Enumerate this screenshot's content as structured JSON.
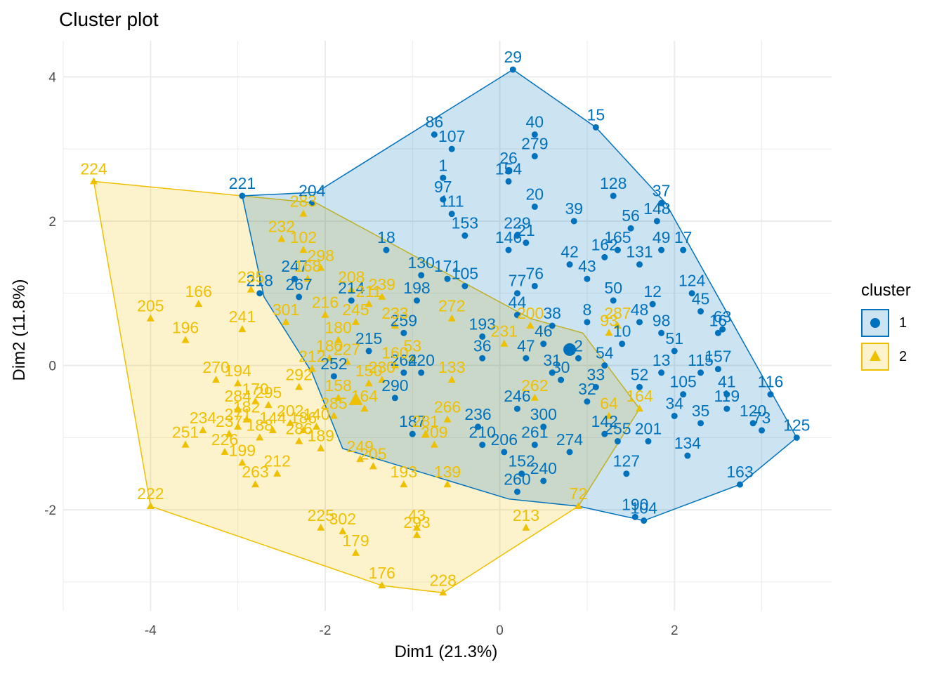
{
  "colors": {
    "cluster1": "#0072BD",
    "cluster2": "#EFC000",
    "grid": "#EBEBEB",
    "tick": "#4D4D4D"
  },
  "chart_data": {
    "type": "scatter",
    "title": "Cluster plot",
    "xlabel": "Dim1 (21.3%)",
    "ylabel": "Dim2 (11.8%)",
    "xlim": [
      -5,
      3.8
    ],
    "ylim": [
      -3.4,
      4.5
    ],
    "xticks": [
      -4,
      -2,
      0,
      2
    ],
    "yticks": [
      -2,
      0,
      2,
      4
    ],
    "grid": true,
    "legend": {
      "title": "cluster",
      "position": "right",
      "labels": [
        "1",
        "2"
      ]
    },
    "centroids": [
      {
        "cluster": "1",
        "x": 0.8,
        "y": 0.22
      },
      {
        "cluster": "2",
        "x": -1.65,
        "y": -0.48
      }
    ],
    "series": [
      {
        "name": "1",
        "hull": [
          [
            0.15,
            4.1
          ],
          [
            1.1,
            3.3
          ],
          [
            1.9,
            2.25
          ],
          [
            3.4,
            -1.0
          ],
          [
            2.75,
            -1.65
          ],
          [
            1.65,
            -2.15
          ],
          [
            0.9,
            -1.95
          ],
          [
            0.1,
            -1.85
          ],
          [
            -1.8,
            -1.15
          ],
          [
            -2.15,
            -0.1
          ],
          [
            -2.7,
            0.95
          ],
          [
            -2.95,
            2.35
          ],
          [
            -2.1,
            2.4
          ]
        ],
        "points": [
          {
            "label": "29",
            "x": 0.15,
            "y": 4.1
          },
          {
            "label": "15",
            "x": 1.1,
            "y": 3.3
          },
          {
            "label": "86",
            "x": -0.75,
            "y": 3.2
          },
          {
            "label": "40",
            "x": 0.4,
            "y": 3.2
          },
          {
            "label": "107",
            "x": -0.55,
            "y": 3.0
          },
          {
            "label": "279",
            "x": 0.4,
            "y": 2.9
          },
          {
            "label": "221",
            "x": -2.95,
            "y": 2.35
          },
          {
            "label": "204",
            "x": -2.15,
            "y": 2.25
          },
          {
            "label": "1",
            "x": -0.65,
            "y": 2.6
          },
          {
            "label": "97",
            "x": -0.65,
            "y": 2.3
          },
          {
            "label": "26",
            "x": 0.1,
            "y": 2.7
          },
          {
            "label": "154",
            "x": 0.1,
            "y": 2.55
          },
          {
            "label": "128",
            "x": 1.3,
            "y": 2.35
          },
          {
            "label": "37",
            "x": 1.85,
            "y": 2.25
          },
          {
            "label": "20",
            "x": 0.4,
            "y": 2.2
          },
          {
            "label": "39",
            "x": 0.85,
            "y": 2.0
          },
          {
            "label": "111",
            "x": -0.55,
            "y": 2.1
          },
          {
            "label": "148",
            "x": 1.8,
            "y": 2.0
          },
          {
            "label": "229",
            "x": 0.2,
            "y": 1.8
          },
          {
            "label": "153",
            "x": -0.4,
            "y": 1.8
          },
          {
            "label": "18",
            "x": -1.3,
            "y": 1.6
          },
          {
            "label": "165",
            "x": 1.35,
            "y": 1.6
          },
          {
            "label": "49",
            "x": 1.85,
            "y": 1.6
          },
          {
            "label": "17",
            "x": 2.1,
            "y": 1.6
          },
          {
            "label": "146",
            "x": 0.1,
            "y": 1.6
          },
          {
            "label": "131",
            "x": 1.6,
            "y": 1.4
          },
          {
            "label": "162",
            "x": 1.2,
            "y": 1.5
          },
          {
            "label": "247",
            "x": -2.35,
            "y": 1.2
          },
          {
            "label": "218",
            "x": -2.75,
            "y": 1.0
          },
          {
            "label": "267",
            "x": -2.3,
            "y": 0.95
          },
          {
            "label": "130",
            "x": -0.9,
            "y": 1.25
          },
          {
            "label": "171",
            "x": -0.6,
            "y": 1.2
          },
          {
            "label": "105",
            "x": -0.4,
            "y": 1.1
          },
          {
            "label": "76",
            "x": 0.4,
            "y": 1.1
          },
          {
            "label": "77",
            "x": 0.2,
            "y": 1.0
          },
          {
            "label": "124",
            "x": 2.2,
            "y": 1.0
          },
          {
            "label": "45",
            "x": 2.3,
            "y": 0.75
          },
          {
            "label": "12",
            "x": 1.75,
            "y": 0.85
          },
          {
            "label": "50",
            "x": 1.3,
            "y": 0.9
          },
          {
            "label": "214",
            "x": -1.7,
            "y": 0.9
          },
          {
            "label": "198",
            "x": -0.95,
            "y": 0.9
          },
          {
            "label": "44",
            "x": 0.2,
            "y": 0.7
          },
          {
            "label": "38",
            "x": 0.6,
            "y": 0.55
          },
          {
            "label": "259",
            "x": -1.1,
            "y": 0.45
          },
          {
            "label": "193",
            "x": -0.2,
            "y": 0.4
          },
          {
            "label": "215",
            "x": -1.5,
            "y": 0.2
          },
          {
            "label": "98",
            "x": 1.85,
            "y": 0.45
          },
          {
            "label": "16",
            "x": 2.5,
            "y": 0.45
          },
          {
            "label": "116",
            "x": 3.1,
            "y": -0.4
          },
          {
            "label": "125",
            "x": 3.4,
            "y": -1.0
          },
          {
            "label": "264",
            "x": -1.1,
            "y": -0.1
          },
          {
            "label": "220",
            "x": -0.9,
            "y": -0.1
          },
          {
            "label": "252",
            "x": -1.9,
            "y": -0.15
          },
          {
            "label": "36",
            "x": -0.2,
            "y": 0.1
          },
          {
            "label": "13",
            "x": 1.85,
            "y": -0.1
          },
          {
            "label": "157",
            "x": 2.5,
            "y": -0.05
          },
          {
            "label": "115",
            "x": 2.3,
            "y": -0.1
          },
          {
            "label": "105b",
            "x": 2.1,
            "y": -0.4
          },
          {
            "label": "119",
            "x": 2.6,
            "y": -0.6
          },
          {
            "label": "120",
            "x": 2.9,
            "y": -0.8
          },
          {
            "label": "73",
            "x": 3.0,
            "y": -0.9
          },
          {
            "label": "290",
            "x": -1.2,
            "y": -0.45
          },
          {
            "label": "187",
            "x": -1.0,
            "y": -0.95
          },
          {
            "label": "236",
            "x": -0.25,
            "y": -0.85
          },
          {
            "label": "246",
            "x": 0.2,
            "y": -0.6
          },
          {
            "label": "300",
            "x": 0.5,
            "y": -0.85
          },
          {
            "label": "142",
            "x": 1.2,
            "y": -0.95
          },
          {
            "label": "210",
            "x": -0.2,
            "y": -1.1
          },
          {
            "label": "206",
            "x": 0.05,
            "y": -1.2
          },
          {
            "label": "261",
            "x": 0.4,
            "y": -1.1
          },
          {
            "label": "274",
            "x": 0.8,
            "y": -1.2
          },
          {
            "label": "255",
            "x": 1.35,
            "y": -1.05
          },
          {
            "label": "201",
            "x": 1.7,
            "y": -1.05
          },
          {
            "label": "134",
            "x": 2.15,
            "y": -1.25
          },
          {
            "label": "127",
            "x": 1.45,
            "y": -1.5
          },
          {
            "label": "152",
            "x": 0.25,
            "y": -1.5
          },
          {
            "label": "240",
            "x": 0.5,
            "y": -1.6
          },
          {
            "label": "260",
            "x": 0.2,
            "y": -1.75
          },
          {
            "label": "163",
            "x": 2.75,
            "y": -1.65
          },
          {
            "label": "190",
            "x": 1.55,
            "y": -2.1
          },
          {
            "label": "104",
            "x": 1.65,
            "y": -2.15
          },
          {
            "label": "21",
            "x": 0.3,
            "y": 1.7
          },
          {
            "label": "56",
            "x": 1.5,
            "y": 1.9
          },
          {
            "label": "63",
            "x": 2.55,
            "y": 0.5
          },
          {
            "label": "8",
            "x": 1.0,
            "y": 0.6
          },
          {
            "label": "10",
            "x": 1.4,
            "y": 0.3
          },
          {
            "label": "2",
            "x": 0.9,
            "y": 0.1
          },
          {
            "label": "30",
            "x": 0.7,
            "y": -0.2
          },
          {
            "label": "31",
            "x": 0.6,
            "y": -0.1
          },
          {
            "label": "32",
            "x": 1.0,
            "y": -0.5
          },
          {
            "label": "33",
            "x": 1.1,
            "y": -0.3
          },
          {
            "label": "34",
            "x": 2.0,
            "y": -0.7
          },
          {
            "label": "35",
            "x": 2.3,
            "y": -0.8
          },
          {
            "label": "41",
            "x": 2.6,
            "y": -0.4
          },
          {
            "label": "42",
            "x": 0.8,
            "y": 1.4
          },
          {
            "label": "43b",
            "x": 1.0,
            "y": 1.2
          },
          {
            "label": "46",
            "x": 0.5,
            "y": 0.3
          },
          {
            "label": "47",
            "x": 0.3,
            "y": 0.1
          },
          {
            "label": "48",
            "x": 1.6,
            "y": 0.6
          },
          {
            "label": "51",
            "x": 2.0,
            "y": 0.2
          },
          {
            "label": "52",
            "x": 1.6,
            "y": -0.3
          },
          {
            "label": "54",
            "x": 1.2,
            "y": 0.0
          }
        ]
      },
      {
        "name": "2",
        "hull": [
          [
            -4.65,
            2.55
          ],
          [
            -2.95,
            2.35
          ],
          [
            -2.1,
            2.25
          ],
          [
            0.35,
            0.65
          ],
          [
            0.95,
            0.45
          ],
          [
            1.6,
            -0.6
          ],
          [
            0.9,
            -1.95
          ],
          [
            -0.65,
            -3.15
          ],
          [
            -1.35,
            -3.05
          ],
          [
            -4.0,
            -1.95
          ]
        ],
        "points": [
          {
            "label": "224",
            "x": -4.65,
            "y": 2.55
          },
          {
            "label": "205",
            "x": -4.0,
            "y": 0.65
          },
          {
            "label": "166",
            "x": -3.45,
            "y": 0.85
          },
          {
            "label": "196",
            "x": -3.6,
            "y": 0.35
          },
          {
            "label": "222",
            "x": -4.0,
            "y": -1.95
          },
          {
            "label": "251",
            "x": -3.6,
            "y": -1.1
          },
          {
            "label": "234",
            "x": -3.4,
            "y": -0.9
          },
          {
            "label": "270",
            "x": -3.25,
            "y": -0.2
          },
          {
            "label": "194",
            "x": -3.0,
            "y": -0.25
          },
          {
            "label": "226",
            "x": -3.15,
            "y": -1.2
          },
          {
            "label": "199",
            "x": -2.95,
            "y": -1.35
          },
          {
            "label": "263",
            "x": -2.8,
            "y": -1.65
          },
          {
            "label": "170",
            "x": -2.8,
            "y": -0.5
          },
          {
            "label": "212",
            "x": -2.55,
            "y": -1.5
          },
          {
            "label": "241",
            "x": -2.95,
            "y": 0.5
          },
          {
            "label": "235",
            "x": -2.85,
            "y": 1.05
          },
          {
            "label": "301",
            "x": -2.45,
            "y": 0.6
          },
          {
            "label": "283",
            "x": -2.25,
            "y": 2.1
          },
          {
            "label": "232",
            "x": -2.5,
            "y": 1.75
          },
          {
            "label": "102",
            "x": -2.25,
            "y": 1.6
          },
          {
            "label": "298",
            "x": -2.05,
            "y": 1.35
          },
          {
            "label": "168",
            "x": -2.2,
            "y": 1.2
          },
          {
            "label": "208",
            "x": -1.7,
            "y": 1.05
          },
          {
            "label": "216",
            "x": -2.0,
            "y": 0.7
          },
          {
            "label": "180",
            "x": -1.85,
            "y": 0.35
          },
          {
            "label": "227",
            "x": -1.75,
            "y": 0.05
          },
          {
            "label": "212b",
            "x": -2.15,
            "y": -0.05
          },
          {
            "label": "239",
            "x": -1.35,
            "y": 0.95
          },
          {
            "label": "285",
            "x": -1.9,
            "y": -0.7
          },
          {
            "label": "186",
            "x": -2.25,
            "y": -0.9
          },
          {
            "label": "189",
            "x": -2.05,
            "y": -1.15
          },
          {
            "label": "164",
            "x": -1.55,
            "y": -0.6
          },
          {
            "label": "249",
            "x": -1.6,
            "y": -1.3
          },
          {
            "label": "205b",
            "x": -1.45,
            "y": -1.4
          },
          {
            "label": "193b",
            "x": -1.1,
            "y": -1.65
          },
          {
            "label": "139",
            "x": -0.6,
            "y": -1.65
          },
          {
            "label": "225",
            "x": -2.05,
            "y": -2.25
          },
          {
            "label": "302",
            "x": -1.8,
            "y": -2.3
          },
          {
            "label": "179",
            "x": -1.65,
            "y": -2.6
          },
          {
            "label": "43",
            "x": -0.95,
            "y": -2.25
          },
          {
            "label": "293",
            "x": -0.95,
            "y": -2.35
          },
          {
            "label": "176",
            "x": -1.35,
            "y": -3.05
          },
          {
            "label": "228",
            "x": -0.65,
            "y": -3.15
          },
          {
            "label": "213",
            "x": 0.3,
            "y": -2.25
          },
          {
            "label": "72",
            "x": 0.9,
            "y": -1.95
          },
          {
            "label": "209",
            "x": -0.75,
            "y": -1.1
          },
          {
            "label": "266",
            "x": -0.6,
            "y": -0.75
          },
          {
            "label": "281",
            "x": -0.85,
            "y": -0.95
          },
          {
            "label": "262",
            "x": 0.4,
            "y": -0.45
          },
          {
            "label": "164b",
            "x": 1.6,
            "y": -0.6
          },
          {
            "label": "64",
            "x": 1.25,
            "y": -0.7
          },
          {
            "label": "93",
            "x": 1.25,
            "y": 0.45
          },
          {
            "label": "287",
            "x": 1.35,
            "y": 0.55
          },
          {
            "label": "200",
            "x": 0.35,
            "y": 0.55
          },
          {
            "label": "231",
            "x": 0.05,
            "y": 0.3
          },
          {
            "label": "272",
            "x": -0.55,
            "y": 0.65
          },
          {
            "label": "53",
            "x": -1.0,
            "y": 0.1
          },
          {
            "label": "230",
            "x": -1.35,
            "y": -0.2
          },
          {
            "label": "133",
            "x": -0.55,
            "y": -0.2
          },
          {
            "label": "233",
            "x": -1.2,
            "y": 0.55
          },
          {
            "label": "211",
            "x": -1.5,
            "y": 0.85
          },
          {
            "label": "245",
            "x": -1.65,
            "y": 0.6
          },
          {
            "label": "180b",
            "x": -1.95,
            "y": 0.1
          },
          {
            "label": "292",
            "x": -2.3,
            "y": -0.3
          },
          {
            "label": "182",
            "x": -2.9,
            "y": -0.75
          },
          {
            "label": "188",
            "x": -2.75,
            "y": -1.0
          },
          {
            "label": "295",
            "x": -2.65,
            "y": -0.55
          },
          {
            "label": "284",
            "x": -3.0,
            "y": -0.6
          },
          {
            "label": "144",
            "x": -2.6,
            "y": -0.9
          },
          {
            "label": "202",
            "x": -2.4,
            "y": -0.8
          },
          {
            "label": "286",
            "x": -2.3,
            "y": -1.05
          },
          {
            "label": "140",
            "x": -2.1,
            "y": -0.85
          },
          {
            "label": "158",
            "x": -1.85,
            "y": -0.45
          },
          {
            "label": "150",
            "x": -1.5,
            "y": -0.25
          },
          {
            "label": "160",
            "x": -1.2,
            "y": 0.0
          },
          {
            "label": "271",
            "x": -3.0,
            "y": -0.85
          },
          {
            "label": "237",
            "x": -3.1,
            "y": -0.95
          }
        ]
      }
    ]
  }
}
